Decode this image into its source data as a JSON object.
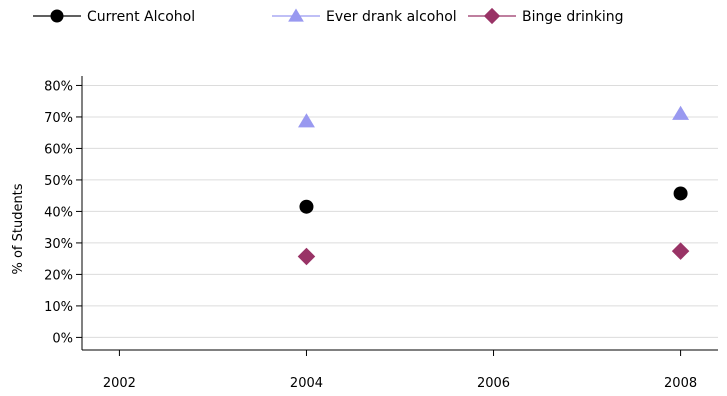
{
  "chart_data": {
    "type": "scatter",
    "title": "",
    "xlabel": "",
    "ylabel": "% of Students",
    "x_ticks": [
      "2002",
      "2004",
      "2006",
      "2008"
    ],
    "y_ticks": [
      "0%",
      "10%",
      "20%",
      "30%",
      "40%",
      "50%",
      "60%",
      "70%",
      "80%"
    ],
    "xlim": [
      2001.6,
      2008.4
    ],
    "ylim": [
      -4,
      83
    ],
    "grid": "horizontal",
    "legend_position": "top-left",
    "series": [
      {
        "name": "Current Alcohol",
        "marker": "circle",
        "color": "#000000",
        "points": [
          {
            "x": 2004,
            "y": 41.5
          },
          {
            "x": 2008,
            "y": 45.7
          }
        ]
      },
      {
        "name": "Ever drank alcohol",
        "marker": "triangle",
        "color": "#9999f0",
        "points": [
          {
            "x": 2004,
            "y": 68.6
          },
          {
            "x": 2008,
            "y": 71.0
          }
        ]
      },
      {
        "name": "Binge drinking",
        "marker": "diamond",
        "color": "#993366",
        "points": [
          {
            "x": 2004,
            "y": 25.7
          },
          {
            "x": 2008,
            "y": 27.4
          }
        ]
      }
    ]
  }
}
